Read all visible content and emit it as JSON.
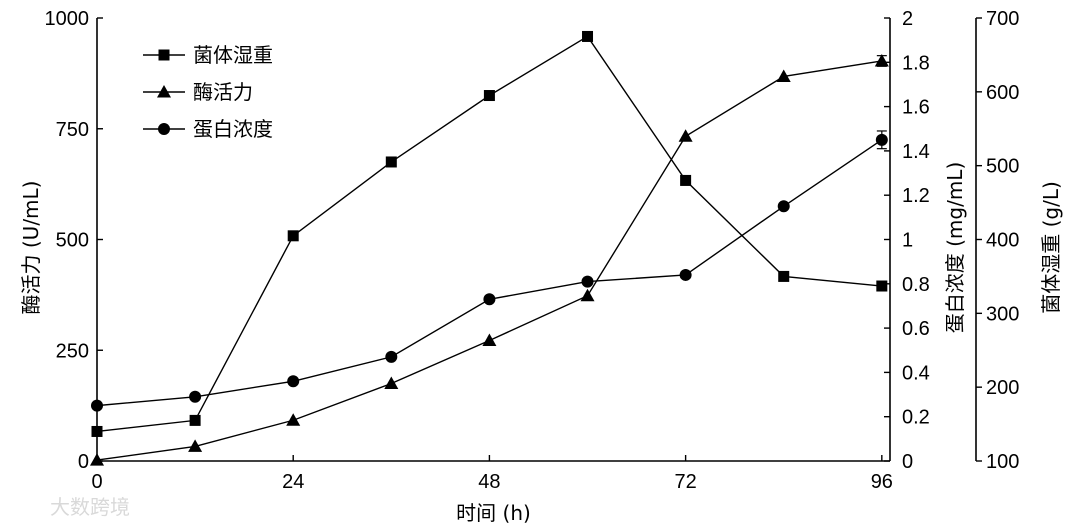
{
  "chart_data": {
    "type": "line",
    "xlabel": "时间 (h)",
    "x_ticks": [
      0,
      24,
      48,
      72,
      96
    ],
    "xlim": [
      0,
      97
    ],
    "axes": {
      "left": {
        "label": "酶活力 (U/mL)",
        "ylim": [
          0,
          1000
        ],
        "ticks": [
          0,
          250,
          500,
          750,
          1000
        ]
      },
      "right1": {
        "label": "蛋白浓度 (mg/mL)",
        "ylim": [
          0,
          2.0
        ],
        "ticks": [
          0,
          0.2,
          0.4,
          0.6,
          0.8,
          1.0,
          1.2,
          1.4,
          1.6,
          1.8,
          2.0
        ]
      },
      "right2": {
        "label": "菌体湿重 (g/L)",
        "ylim": [
          100,
          700
        ],
        "ticks": [
          100,
          200,
          300,
          400,
          500,
          600,
          700
        ]
      }
    },
    "series": [
      {
        "name": "菌体湿重",
        "marker": "square",
        "axis": "right2",
        "x": [
          0,
          12,
          24,
          36,
          48,
          60,
          72,
          84,
          96
        ],
        "y": [
          140,
          155,
          405,
          505,
          595,
          675,
          480,
          350,
          337
        ]
      },
      {
        "name": "酶活力",
        "marker": "triangle",
        "axis": "left",
        "x": [
          0,
          12,
          24,
          36,
          48,
          60,
          72,
          84,
          96
        ],
        "y": [
          2,
          33,
          92,
          175,
          272,
          373,
          733,
          868,
          903
        ],
        "error": [
          0,
          0,
          0,
          0,
          0,
          0,
          0,
          0,
          12
        ]
      },
      {
        "name": "蛋白浓度",
        "marker": "circle",
        "axis": "right1",
        "x": [
          0,
          12,
          24,
          36,
          48,
          60,
          72,
          84,
          96
        ],
        "y": [
          0.25,
          0.29,
          0.36,
          0.47,
          0.73,
          0.81,
          0.84,
          1.15,
          1.45
        ],
        "error": [
          0,
          0,
          0,
          0,
          0,
          0,
          0,
          0,
          0.04
        ]
      }
    ],
    "legend": {
      "position": "top-left"
    },
    "grid": false
  },
  "watermark": "大数跨境"
}
